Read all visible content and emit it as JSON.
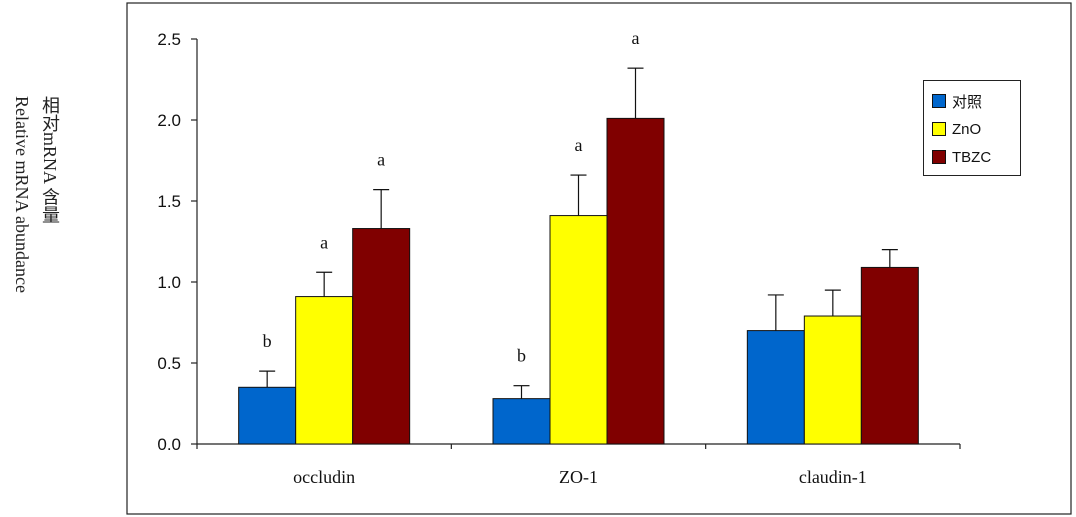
{
  "chart_data": {
    "type": "bar",
    "ylabel_line1": "相对mRNA 含量",
    "ylabel_line2": "Relative mRNA abundance",
    "categories": [
      "occludin",
      "ZO-1",
      "claudin-1"
    ],
    "ylim": [
      0,
      2.5
    ],
    "yticks": [
      "0.0",
      "0.5",
      "1.0",
      "1.5",
      "2.0",
      "2.5"
    ],
    "legend_position": "top-right",
    "series": [
      {
        "name": "对照",
        "color": "#0066cc",
        "values": [
          0.35,
          0.28,
          0.7
        ],
        "errors": [
          0.1,
          0.08,
          0.22
        ],
        "labels": [
          "b",
          "b",
          ""
        ]
      },
      {
        "name": "ZnO",
        "color": "#ffff00",
        "values": [
          0.91,
          1.41,
          0.79
        ],
        "errors": [
          0.15,
          0.25,
          0.16
        ],
        "labels": [
          "a",
          "a",
          ""
        ]
      },
      {
        "name": "TBZC",
        "color": "#800000",
        "values": [
          1.33,
          2.01,
          1.09
        ],
        "errors": [
          0.24,
          0.31,
          0.11
        ],
        "labels": [
          "a",
          "a",
          ""
        ]
      }
    ]
  }
}
